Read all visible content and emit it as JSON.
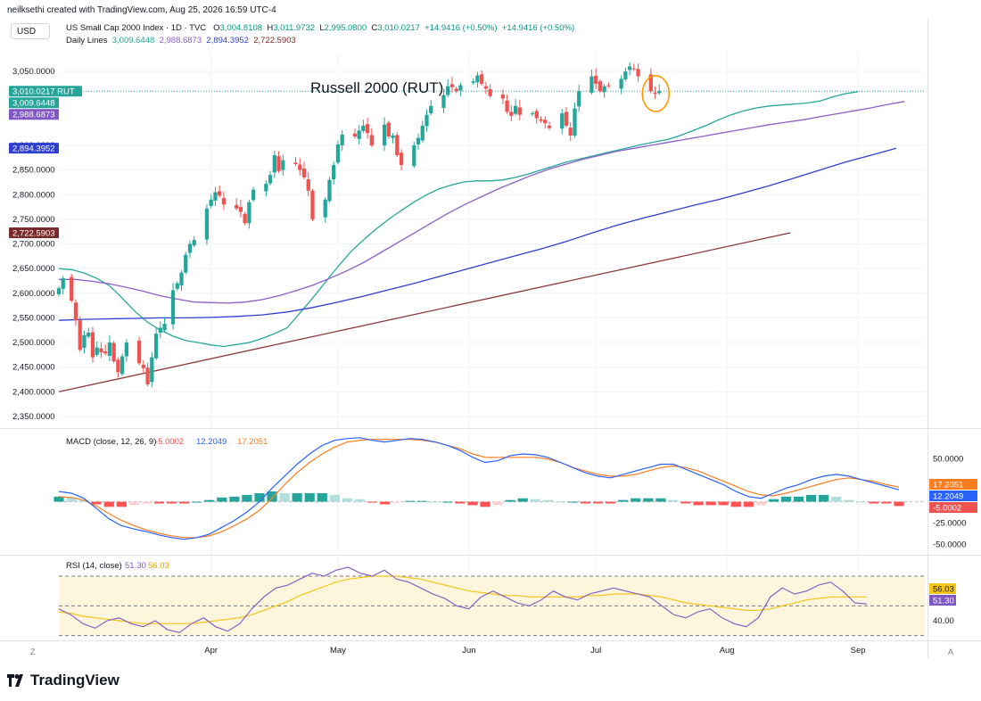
{
  "header": {
    "attribution": "neilksethi created with TradingView.com, Aug 25, 2026 16:59 UTC-4",
    "currency": "USD",
    "symbol_title": "US Small Cap 2000 Index · 1D · TVC",
    "ohlc": {
      "o_label": "O",
      "o": "3,004.8108",
      "h_label": "H",
      "h": "3,011.9732",
      "l_label": "L",
      "l": "2,995.0800",
      "c_label": "C",
      "c": "3,010.0217",
      "change": "+14.9416 (+0.50%)",
      "change2": "+14.9416 (+0.50%)"
    },
    "lines_label": "Daily Lines",
    "lines_values": [
      "3,009.6448",
      "2,988.6873",
      "2,894.3952",
      "2,722.5903"
    ]
  },
  "annotation": "Russell 2000 (RUT)",
  "footer": {
    "brand": "TradingView"
  },
  "corner_left": "Z",
  "corner_right": "A",
  "colors": {
    "up": "#26a69a",
    "down": "#ef5350",
    "ma20": "#26a69a",
    "ma50": "#8e5fc7",
    "ma100": "#2e3fd1",
    "ma200": "#8b3a3a",
    "macd": "#2962ff",
    "signal": "#ff7c1e",
    "rsi": "#7e57c2",
    "rsi_ma": "#f5c518",
    "highlight_circle": "#ff9800"
  },
  "chart_data": [
    {
      "type": "candlestick",
      "title": "US Small Cap 2000 Index · 1D · TVC",
      "x_ticks": [
        "Apr",
        "May",
        "Jun",
        "Jul",
        "Aug",
        "Sep"
      ],
      "y_ticks": [
        "2,350.0000",
        "2,400.0000",
        "2,450.0000",
        "2,500.0000",
        "2,550.0000",
        "2,600.0000",
        "2,650.0000",
        "2,700.0000",
        "2,750.0000",
        "2,800.0000",
        "2,850.0000",
        "2,900.0000",
        "3,050.0000"
      ],
      "ylim": [
        2330,
        3090
      ],
      "x_range_days": [
        0,
        205
      ],
      "tick_days": {
        "Apr": 36,
        "May": 66,
        "Jun": 97,
        "Jul": 127,
        "Aug": 158,
        "Sep": 189
      },
      "price_tags": [
        {
          "label": "3,010.0217",
          "suffix": "RUT",
          "value": 3010.02,
          "color": "#26a69a"
        },
        {
          "label": "3,009.6448",
          "value": 3009.64,
          "color": "#26a69a"
        },
        {
          "label": "2,988.6873",
          "value": 2988.69,
          "color": "#7e57c2"
        },
        {
          "label": "2,894.3952",
          "value": 2894.4,
          "color": "#2e3fd1"
        },
        {
          "label": "2,722.5903",
          "value": 2722.59,
          "color": "#7a2a2a"
        }
      ],
      "closes": [
        2610,
        2630,
        2585,
        2545,
        2485,
        2515,
        2520,
        2470,
        2490,
        2480,
        2478,
        2500,
        2462,
        2440,
        2472,
        2500,
        2458,
        2448,
        2415,
        2470,
        2518,
        2530,
        2538,
        2606,
        2620,
        2642,
        2678,
        2700,
        2708,
        2772,
        2790,
        2805,
        2798,
        2780,
        2772,
        2765,
        2742,
        2785,
        2810,
        2822,
        2840,
        2880,
        2848,
        2870,
        2862,
        2850,
        2835,
        2808,
        2750,
        2790,
        2830,
        2860,
        2902,
        2922,
        2918,
        2930,
        2940,
        2925,
        2900,
        2942,
        2918,
        2920,
        2880,
        2860,
        2900,
        2915,
        2940,
        2962,
        2980,
        3002,
        3020,
        3018,
        3010,
        3022,
        3030,
        3042,
        3025,
        3015,
        3000,
        2995,
        2968,
        2960,
        2980,
        2962,
        2965,
        2955,
        2950,
        2945,
        2935,
        2965,
        2940,
        2920,
        2975,
        3010,
        3040,
        3025,
        3010,
        3020,
        3020,
        3035,
        3050,
        3060,
        3055,
        3040,
        3010,
        3005,
        3010
      ],
      "candle_days": [
        0,
        1,
        3,
        4,
        5,
        6,
        7,
        8,
        9,
        10,
        11,
        12,
        13,
        14,
        15,
        16,
        19,
        20,
        21,
        22,
        23,
        24,
        25,
        27,
        28,
        29,
        30,
        31,
        32,
        35,
        36,
        37,
        38,
        39,
        42,
        43,
        44,
        45,
        46,
        49,
        50,
        51,
        52,
        53,
        56,
        57,
        58,
        59,
        60,
        63,
        64,
        65,
        66,
        67,
        70,
        71,
        72,
        73,
        74,
        77,
        78,
        79,
        80,
        81,
        84,
        85,
        86,
        87,
        88,
        91,
        92,
        93,
        94,
        95,
        98,
        99,
        100,
        101,
        102,
        105,
        106,
        107,
        108,
        109,
        112,
        113,
        114,
        115,
        116,
        119,
        120,
        121,
        122,
        123,
        126,
        127,
        128,
        129,
        130,
        133,
        134,
        135,
        136,
        137,
        140,
        141,
        142
      ],
      "series": [
        {
          "name": "3,009.6448",
          "values": [
            2650,
            2648,
            2641,
            2630,
            2615,
            2590,
            2563,
            2541,
            2525,
            2513,
            2504,
            2500,
            2495,
            2492,
            2496,
            2500,
            2508,
            2518,
            2530,
            2560,
            2590,
            2622,
            2654,
            2684,
            2708,
            2730,
            2750,
            2768,
            2785,
            2800,
            2812,
            2820,
            2826,
            2828,
            2828,
            2830,
            2835,
            2842,
            2850,
            2858,
            2866,
            2872,
            2878,
            2884,
            2890,
            2896,
            2902,
            2907,
            2912,
            2920,
            2930,
            2940,
            2952,
            2962,
            2970,
            2976,
            2980,
            2982,
            2984,
            2986,
            2990,
            2998,
            3005,
            3009
          ],
          "days_step": 3,
          "color": "#26a69a"
        },
        {
          "name": "2,988.6873",
          "values": [
            2628,
            2628,
            2624,
            2619,
            2612,
            2604,
            2595,
            2588,
            2582,
            2581,
            2580,
            2582,
            2587,
            2595,
            2605,
            2616,
            2630,
            2645,
            2662,
            2682,
            2702,
            2722,
            2742,
            2762,
            2780,
            2796,
            2812,
            2826,
            2840,
            2852,
            2862,
            2872,
            2880,
            2888,
            2894,
            2900,
            2906,
            2912,
            2918,
            2924,
            2930,
            2936,
            2942,
            2947,
            2952,
            2958,
            2964,
            2970,
            2976,
            2983,
            2989
          ],
          "days_step": 4,
          "color": "#8e5fc7"
        },
        {
          "name": "2,894.3952",
          "values": [
            2545,
            2547,
            2548,
            2549,
            2550,
            2550,
            2551,
            2553,
            2556,
            2562,
            2571,
            2582,
            2594,
            2607,
            2620,
            2634,
            2648,
            2662,
            2676,
            2690,
            2705,
            2722,
            2738,
            2752,
            2765,
            2778,
            2790,
            2804,
            2818,
            2834,
            2850,
            2866,
            2880,
            2894
          ],
          "days_step": 6,
          "color": "#2e3fd1"
        },
        {
          "name": "2,722.5903",
          "values": [
            2400,
            2722.59
          ],
          "days": [
            0,
            173
          ],
          "color": "#8b3a3a"
        }
      ]
    },
    {
      "type": "bar+line",
      "title": "MACD (close, 12, 26, 9)",
      "legend_values": [
        "-5.0002",
        "12.2049",
        "17.2051"
      ],
      "y_ticks": [
        "50.0000",
        "-25.0000",
        "-50.0000"
      ],
      "ylim": [
        -60,
        80
      ],
      "price_tags": [
        {
          "label": "17.2051",
          "value": 17.2051,
          "color": "#ff7c1e"
        },
        {
          "label": "12.2049",
          "value": 12.2049,
          "color": "#2962ff"
        },
        {
          "label": "-5.0002",
          "value": -5.0002,
          "color": "#ef5350"
        }
      ],
      "macd": [
        12,
        10,
        4,
        -8,
        -20,
        -28,
        -32,
        -35,
        -39,
        -42,
        -44,
        -42,
        -38,
        -30,
        -22,
        -12,
        0,
        16,
        30,
        44,
        56,
        66,
        72,
        74,
        75,
        72,
        70,
        72,
        74,
        73,
        70,
        66,
        60,
        52,
        46,
        48,
        54,
        56,
        55,
        52,
        46,
        40,
        34,
        30,
        28,
        32,
        36,
        40,
        44,
        44,
        38,
        32,
        26,
        20,
        12,
        6,
        4,
        10,
        16,
        20,
        26,
        30,
        32,
        30,
        26,
        22,
        18,
        14
      ],
      "signal": [
        6,
        5,
        2,
        -5,
        -14,
        -22,
        -28,
        -33,
        -37,
        -40,
        -42,
        -42,
        -40,
        -35,
        -28,
        -20,
        -10,
        4,
        20,
        34,
        46,
        56,
        64,
        70,
        72,
        73,
        73,
        73,
        73,
        72,
        70,
        66,
        62,
        56,
        52,
        52,
        52,
        52,
        52,
        50,
        46,
        40,
        36,
        32,
        30,
        30,
        32,
        36,
        40,
        42,
        40,
        36,
        30,
        24,
        18,
        12,
        8,
        7,
        10,
        14,
        18,
        22,
        26,
        28,
        26,
        24,
        20,
        17.2
      ],
      "histogram": [
        6,
        5,
        2,
        -3,
        -6,
        -6,
        -4,
        -2,
        -2,
        -2,
        -2,
        0,
        2,
        5,
        6,
        8,
        10,
        12,
        10,
        10,
        10,
        10,
        8,
        4,
        3,
        -1,
        -3,
        -1,
        1,
        1,
        0,
        0,
        -2,
        -4,
        -6,
        -4,
        2,
        4,
        3,
        2,
        0,
        0,
        -2,
        -2,
        -2,
        2,
        4,
        4,
        4,
        2,
        -2,
        -4,
        -4,
        -4,
        -6,
        -6,
        -4,
        3,
        6,
        6,
        8,
        8,
        6,
        2,
        0,
        -2,
        -2,
        -5
      ]
    },
    {
      "type": "line",
      "title": "RSI (14, close)",
      "legend_values": [
        "51.30",
        "56.03"
      ],
      "y_ticks": [
        "40.00"
      ],
      "ylim": [
        28,
        82
      ],
      "bands": [
        30,
        50,
        70
      ],
      "price_tags": [
        {
          "label": "56.03",
          "value": 56.03,
          "color": "#f5c518"
        },
        {
          "label": "51.30",
          "value": 51.3,
          "color": "#7e57c2"
        }
      ],
      "rsi": [
        48,
        44,
        38,
        35,
        40,
        42,
        38,
        36,
        40,
        34,
        32,
        38,
        42,
        36,
        33,
        38,
        48,
        56,
        62,
        64,
        68,
        72,
        70,
        74,
        76,
        72,
        70,
        74,
        68,
        66,
        62,
        58,
        55,
        50,
        48,
        56,
        60,
        56,
        52,
        50,
        54,
        60,
        56,
        54,
        58,
        60,
        62,
        60,
        58,
        56,
        50,
        44,
        42,
        46,
        48,
        42,
        38,
        36,
        42,
        56,
        62,
        58,
        60,
        64,
        66,
        60,
        52,
        51.3
      ],
      "rsi_ma": [
        46,
        45,
        43,
        42,
        41,
        40,
        39,
        38,
        38,
        38,
        38,
        38,
        39,
        40,
        41,
        42,
        44,
        47,
        50,
        53,
        57,
        60,
        63,
        66,
        68,
        69,
        70,
        70,
        70,
        69,
        68,
        66,
        64,
        62,
        60,
        59,
        58,
        57,
        57,
        56,
        56,
        56,
        56,
        56,
        57,
        57,
        58,
        58,
        58,
        57,
        56,
        54,
        52,
        51,
        50,
        49,
        48,
        47,
        47,
        48,
        50,
        52,
        54,
        55,
        56,
        56,
        56,
        56.03
      ]
    }
  ]
}
